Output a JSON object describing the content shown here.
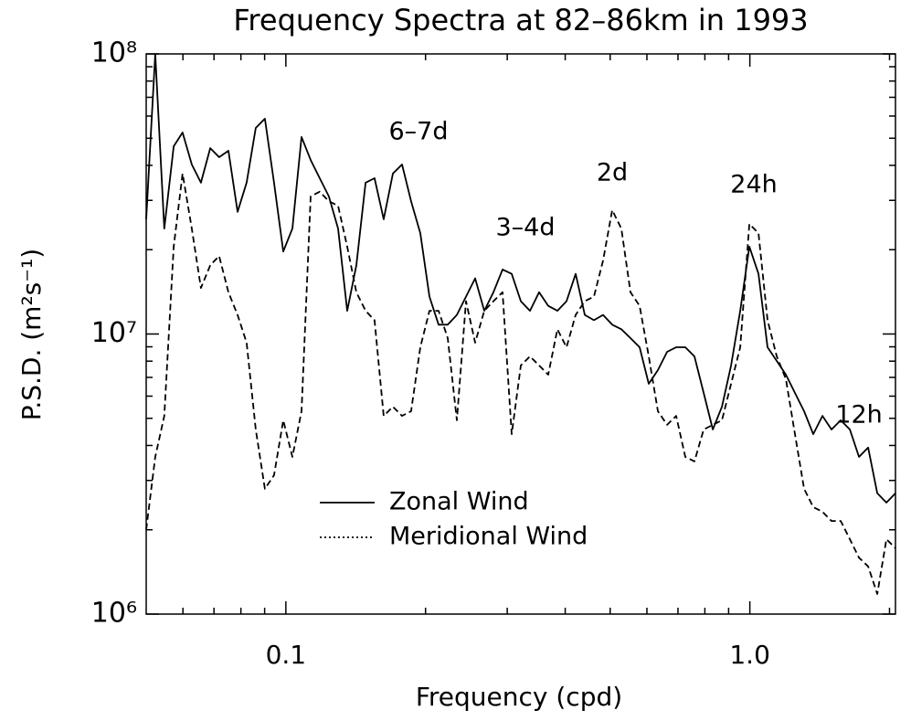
{
  "chart_data": {
    "type": "line",
    "title": "Frequency Spectra at 82–86km in 1993",
    "xlabel": "Frequency (cpd)",
    "ylabel": "P.S.D. (m²s⁻¹)",
    "log_x": true,
    "log_y": true,
    "xlim": [
      0.05,
      2.06
    ],
    "ylim": [
      1000000,
      100000000
    ],
    "xticks": [
      0.1,
      {
        "value": 1,
        "label": "1.0"
      }
    ],
    "xticks_minor": [
      0.06,
      0.07,
      0.08,
      0.09,
      0.2,
      0.3,
      0.4,
      0.5,
      0.6,
      0.7,
      0.8,
      0.9,
      2
    ],
    "yticks": [
      {
        "value": 1000000,
        "label": "10⁶"
      },
      {
        "value": 10000000,
        "label": "10⁷"
      },
      {
        "value": 100000000,
        "label": "10⁸"
      }
    ],
    "yticks_minor": [
      2000000,
      3000000,
      4000000,
      5000000,
      6000000,
      7000000,
      8000000,
      9000000,
      20000000,
      30000000,
      40000000,
      50000000,
      60000000,
      70000000,
      80000000,
      90000000
    ],
    "annotations": [
      "6–7d",
      "3–4d",
      "2d",
      "24h",
      "12h"
    ],
    "legend": "lower-left",
    "x": [
      0.05,
      0.0523,
      0.0547,
      0.0573,
      0.0599,
      0.0627,
      0.0656,
      0.0687,
      0.0718,
      0.0752,
      0.0787,
      0.0823,
      0.0861,
      0.0901,
      0.0943,
      0.0987,
      0.1033,
      0.1081,
      0.1131,
      0.1183,
      0.1238,
      0.1296,
      0.1356,
      0.1419,
      0.1485,
      0.1553,
      0.1625,
      0.1701,
      0.178,
      0.1862,
      0.1949,
      0.2039,
      0.2134,
      0.2233,
      0.2337,
      0.2445,
      0.2558,
      0.2677,
      0.2801,
      0.2931,
      0.3067,
      0.3209,
      0.3358,
      0.3514,
      0.3677,
      0.3848,
      0.4026,
      0.4213,
      0.4409,
      0.4613,
      0.4827,
      0.5051,
      0.5286,
      0.5531,
      0.5788,
      0.6056,
      0.6337,
      0.6632,
      0.6939,
      0.7261,
      0.7598,
      0.7951,
      0.832,
      0.8706,
      0.911,
      0.9533,
      0.9975,
      1.044,
      1.092,
      1.143,
      1.196,
      1.251,
      1.309,
      1.37,
      1.434,
      1.5,
      1.57,
      1.643,
      1.719,
      1.799,
      1.882,
      1.97,
      2.06
    ],
    "series": [
      {
        "name": "Zonal Wind",
        "color": "#000000",
        "style": "solid",
        "values": [
          25700000,
          100000000,
          23800000,
          46800000,
          52400000,
          40300000,
          34700000,
          46100000,
          42800000,
          45100000,
          27300000,
          34700000,
          54400000,
          58700000,
          34700000,
          19700000,
          23800000,
          50500000,
          41800000,
          36000000,
          31000000,
          23800000,
          12100000,
          17600000,
          34700000,
          36000000,
          25700000,
          37400000,
          40300000,
          29800000,
          22900000,
          13600000,
          10800000,
          10800000,
          11700000,
          13600000,
          15800000,
          12100000,
          14100000,
          17000000,
          16400000,
          13100000,
          12100000,
          14100000,
          12600000,
          12100000,
          13100000,
          16400000,
          11700000,
          11200000,
          11700000,
          10800000,
          10400000,
          9670000,
          8970000,
          6640000,
          7430000,
          8640000,
          8970000,
          8970000,
          8320000,
          6160000,
          4560000,
          5500000,
          7720000,
          12100000,
          20500000,
          16400000,
          8970000,
          8010000,
          7160000,
          6160000,
          5300000,
          4390000,
          5100000,
          4560000,
          4920000,
          4560000,
          3640000,
          3930000,
          2700000,
          2500000,
          2700000
        ]
      },
      {
        "name": "Meridional Wind",
        "color": "#000000",
        "style": "dashed",
        "values": [
          2000000,
          3640000,
          5100000,
          20500000,
          37400000,
          23800000,
          14600000,
          17600000,
          19000000,
          14100000,
          11700000,
          9310000,
          4560000,
          2800000,
          3130000,
          4920000,
          3640000,
          5300000,
          31000000,
          32200000,
          29800000,
          28700000,
          20500000,
          14100000,
          12100000,
          11200000,
          5100000,
          5500000,
          5100000,
          5300000,
          8970000,
          12100000,
          12100000,
          9670000,
          4920000,
          13100000,
          9310000,
          12100000,
          13100000,
          14100000,
          4390000,
          7720000,
          8320000,
          7720000,
          7160000,
          10400000,
          8970000,
          11700000,
          13100000,
          13600000,
          18300000,
          27700000,
          23800000,
          14100000,
          12600000,
          8320000,
          5300000,
          4740000,
          5100000,
          3640000,
          3510000,
          4560000,
          4740000,
          4920000,
          6640000,
          8970000,
          24700000,
          22900000,
          11200000,
          8320000,
          6900000,
          4390000,
          2800000,
          2410000,
          2320000,
          2150000,
          2150000,
          1850000,
          1590000,
          1480000,
          1180000,
          1850000,
          1720000
        ]
      }
    ]
  }
}
